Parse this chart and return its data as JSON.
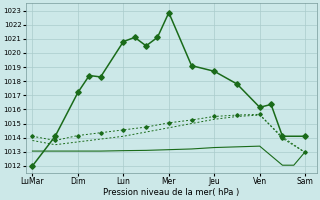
{
  "background_color": "#cce8e8",
  "grid_color": "#aacccc",
  "line_color": "#1a6b1a",
  "xlabel": "Pression niveau de la mer( hPa )",
  "ylim": [
    1011.5,
    1023.5
  ],
  "yticks": [
    1012,
    1013,
    1014,
    1015,
    1016,
    1017,
    1018,
    1019,
    1020,
    1021,
    1022,
    1023
  ],
  "xtick_labels": [
    "LuMar",
    "Dim",
    "Lun",
    "Mer",
    "Jeu",
    "Ven",
    "Sam"
  ],
  "xtick_positions": [
    0,
    2,
    4,
    6,
    8,
    10,
    12
  ],
  "series1_x": [
    0,
    1,
    2,
    2.5,
    3,
    4,
    4.5,
    5,
    5.5,
    6,
    7,
    8,
    9,
    10,
    10.5,
    11,
    12
  ],
  "series1_y": [
    1012.0,
    1014.1,
    1017.2,
    1018.4,
    1018.3,
    1020.8,
    1021.1,
    1020.5,
    1021.1,
    1022.85,
    1019.1,
    1018.7,
    1017.8,
    1016.15,
    1016.35,
    1014.1,
    1014.1
  ],
  "series2_x": [
    0,
    1,
    2,
    3,
    4,
    5,
    6,
    7,
    8,
    9,
    10,
    11,
    12
  ],
  "series2_y": [
    1014.1,
    1013.8,
    1014.15,
    1014.35,
    1014.55,
    1014.75,
    1015.05,
    1015.25,
    1015.5,
    1015.6,
    1015.65,
    1013.95,
    1012.95
  ],
  "series3_x": [
    0,
    1,
    2,
    3,
    4,
    5,
    6,
    7,
    8,
    9,
    10,
    11,
    11.5,
    12
  ],
  "series3_y": [
    1013.05,
    1013.05,
    1013.05,
    1013.05,
    1013.08,
    1013.1,
    1013.15,
    1013.2,
    1013.3,
    1013.35,
    1013.4,
    1012.05,
    1012.05,
    1013.0
  ],
  "series4_x": [
    0,
    1,
    2,
    3,
    4,
    5,
    6,
    7,
    8,
    9,
    10,
    11,
    12
  ],
  "series4_y": [
    1013.8,
    1013.5,
    1013.7,
    1013.9,
    1014.1,
    1014.4,
    1014.7,
    1015.0,
    1015.3,
    1015.5,
    1015.6,
    1014.05,
    1012.95
  ]
}
